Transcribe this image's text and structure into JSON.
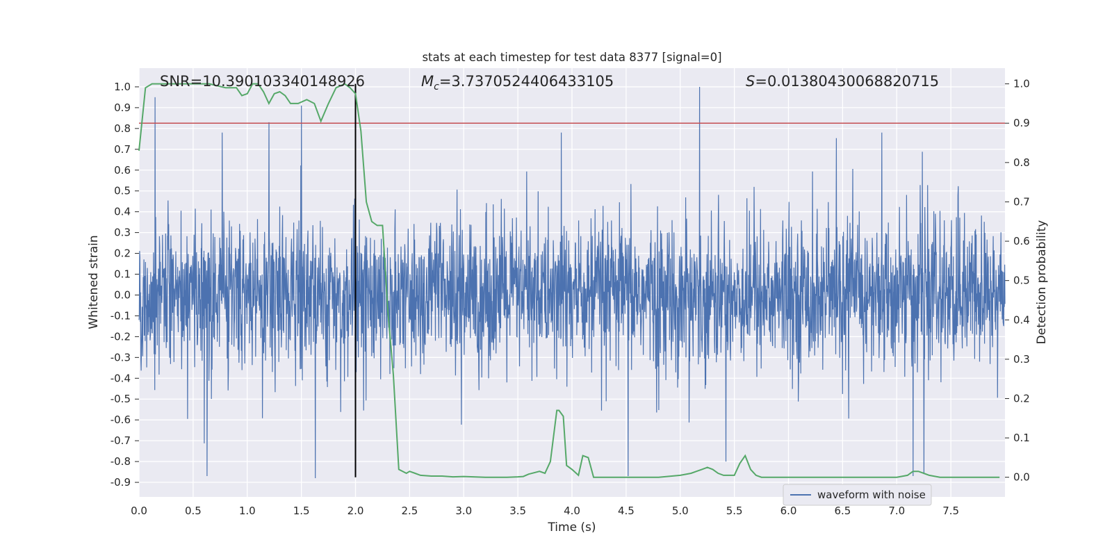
{
  "chart_data": {
    "type": "line",
    "title": "stats at each timestep for test data 8377 [signal=0]",
    "xlabel": "Time (s)",
    "ylabel_left": "Whitened strain",
    "ylabel_right": "Detection probability",
    "xlim": [
      0,
      8
    ],
    "ylim_left": [
      -0.97,
      1.09
    ],
    "ylim_right": [
      -0.05,
      1.04
    ],
    "x_ticks": [
      "0.0",
      "0.5",
      "1.0",
      "1.5",
      "2.0",
      "2.5",
      "3.0",
      "3.5",
      "4.0",
      "4.5",
      "5.0",
      "5.5",
      "6.0",
      "6.5",
      "7.0",
      "7.5"
    ],
    "y_left_ticks": [
      "-0.9",
      "-0.8",
      "-0.7",
      "-0.6",
      "-0.5",
      "-0.4",
      "-0.3",
      "-0.2",
      "-0.1",
      "0.0",
      "0.1",
      "0.2",
      "0.3",
      "0.4",
      "0.5",
      "0.6",
      "0.7",
      "0.8",
      "0.9",
      "1.0"
    ],
    "y_right_ticks": [
      "0.0",
      "0.1",
      "0.2",
      "0.3",
      "0.4",
      "0.5",
      "0.6",
      "0.7",
      "0.8",
      "0.9",
      "1.0"
    ],
    "grid": true,
    "legend_position": "bottom-right",
    "annotations": {
      "snr": "SNR=10.390103340148926",
      "mc_symbol": "M",
      "mc_sub": "c",
      "mc_value": "=3.7370524406433105",
      "s_symbol": "S",
      "s_value": "=0.01380430068820715"
    },
    "threshold_probability": 0.9,
    "marker_time": 2.0,
    "series": [
      {
        "name": "waveform with noise",
        "axis": "left",
        "color": "#4c72b0",
        "style": "dense noise waveform, envelope about ±0.25 core with peaks to +1.0 and -0.88",
        "peaks": [
          {
            "t": 0.15,
            "v": 0.95
          },
          {
            "t": 0.63,
            "v": -0.87
          },
          {
            "t": 1.2,
            "v": 0.83
          },
          {
            "t": 1.5,
            "v": 0.91
          },
          {
            "t": 1.63,
            "v": -0.88
          },
          {
            "t": 3.9,
            "v": 0.78
          },
          {
            "t": 4.52,
            "v": -0.87
          },
          {
            "t": 5.18,
            "v": 1.0
          },
          {
            "t": 7.15,
            "v": -0.87
          },
          {
            "t": 7.25,
            "v": -0.86
          }
        ]
      },
      {
        "name": "Detection probability",
        "axis": "right",
        "color": "#55a868",
        "x": [
          0.0,
          0.06,
          0.12,
          0.25,
          0.4,
          0.55,
          0.65,
          0.8,
          0.9,
          0.95,
          1.0,
          1.05,
          1.1,
          1.15,
          1.2,
          1.25,
          1.3,
          1.35,
          1.4,
          1.47,
          1.55,
          1.62,
          1.68,
          1.75,
          1.82,
          1.9,
          1.95,
          2.0,
          2.05,
          2.1,
          2.15,
          2.2,
          2.25,
          2.3,
          2.35,
          2.4,
          2.47,
          2.5,
          2.55,
          2.6,
          2.7,
          2.8,
          2.9,
          3.0,
          3.2,
          3.4,
          3.5,
          3.55,
          3.6,
          3.7,
          3.75,
          3.8,
          3.86,
          3.88,
          3.92,
          3.95,
          4.0,
          4.06,
          4.1,
          4.15,
          4.2,
          4.25,
          4.3,
          4.5,
          4.8,
          5.0,
          5.1,
          5.15,
          5.2,
          5.25,
          5.3,
          5.35,
          5.4,
          5.5,
          5.55,
          5.6,
          5.65,
          5.7,
          5.75,
          5.8,
          6.0,
          6.5,
          7.0,
          7.1,
          7.15,
          7.2,
          7.25,
          7.3,
          7.4,
          7.6,
          7.8,
          7.95
        ],
        "y": [
          0.83,
          0.99,
          1.0,
          1.0,
          1.0,
          1.0,
          1.0,
          0.99,
          0.99,
          0.97,
          0.975,
          1.0,
          1.0,
          0.98,
          0.95,
          0.975,
          0.98,
          0.97,
          0.95,
          0.95,
          0.96,
          0.95,
          0.905,
          0.95,
          0.99,
          1.0,
          0.99,
          0.975,
          0.88,
          0.7,
          0.65,
          0.64,
          0.64,
          0.42,
          0.26,
          0.02,
          0.01,
          0.015,
          0.01,
          0.005,
          0.003,
          0.003,
          0.001,
          0.002,
          0.0,
          0.0,
          0.001,
          0.002,
          0.008,
          0.015,
          0.01,
          0.04,
          0.17,
          0.17,
          0.155,
          0.03,
          0.02,
          0.005,
          0.055,
          0.05,
          0.0,
          0.0,
          0.0,
          0.0,
          0.0,
          0.005,
          0.01,
          0.015,
          0.02,
          0.025,
          0.02,
          0.01,
          0.005,
          0.005,
          0.035,
          0.055,
          0.02,
          0.005,
          0.0,
          0.0,
          0.0,
          0.0,
          0.0,
          0.005,
          0.015,
          0.015,
          0.01,
          0.005,
          0.0,
          0.0,
          0.0,
          0.0
        ]
      }
    ]
  }
}
